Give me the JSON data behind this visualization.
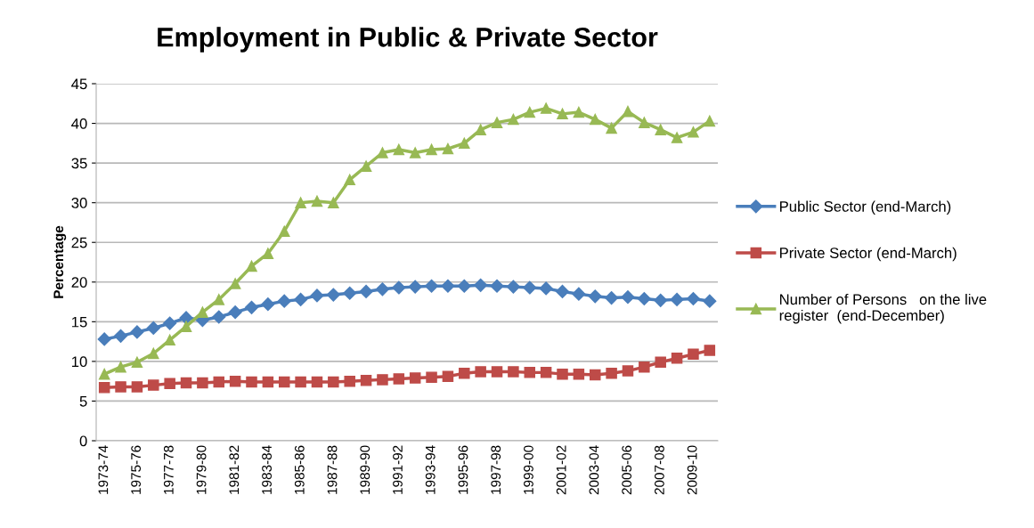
{
  "chart_data": {
    "type": "line",
    "title": "Employment in Public & Private Sector",
    "ylabel": "Percentage",
    "categories": [
      "1973-74",
      null,
      "1975-76",
      null,
      "1977-78",
      null,
      "1979-80",
      null,
      "1981-82",
      null,
      "1983-84",
      null,
      "1985-86",
      null,
      "1987-88",
      null,
      "1989-90",
      null,
      "1991-92",
      null,
      "1993-94",
      null,
      "1995-96",
      null,
      "1997-98",
      null,
      "1999-00",
      null,
      "2001-02",
      null,
      "2003-04",
      null,
      "2005-06",
      null,
      "2007-08",
      null,
      "2009-10",
      null
    ],
    "series": [
      {
        "name": "Public Sector (end-March)",
        "color": "#4a7ebb",
        "marker": "diamond",
        "values": [
          12.8,
          13.2,
          13.7,
          14.2,
          14.8,
          15.5,
          15.2,
          15.6,
          16.2,
          16.8,
          17.2,
          17.6,
          17.8,
          18.3,
          18.4,
          18.6,
          18.8,
          19.1,
          19.3,
          19.4,
          19.5,
          19.5,
          19.5,
          19.6,
          19.5,
          19.4,
          19.3,
          19.2,
          18.8,
          18.5,
          18.2,
          18.0,
          18.1,
          17.9,
          17.7,
          17.8,
          17.9,
          17.6
        ]
      },
      {
        "name": "Private Sector (end-March)",
        "color": "#be4b48",
        "marker": "square",
        "values": [
          6.7,
          6.8,
          6.8,
          7.0,
          7.2,
          7.3,
          7.3,
          7.4,
          7.5,
          7.4,
          7.4,
          7.4,
          7.4,
          7.4,
          7.4,
          7.5,
          7.6,
          7.7,
          7.8,
          7.9,
          8.0,
          8.1,
          8.5,
          8.7,
          8.7,
          8.7,
          8.6,
          8.6,
          8.4,
          8.4,
          8.3,
          8.5,
          8.8,
          9.3,
          9.9,
          10.4,
          10.9,
          11.4
        ]
      },
      {
        "name": "Number of Persons   on the live\nregister  (end-December)",
        "color": "#98b954",
        "marker": "triangle",
        "values": [
          8.4,
          9.3,
          9.9,
          11.0,
          12.7,
          14.4,
          16.2,
          17.8,
          19.8,
          22.0,
          23.6,
          26.4,
          30.0,
          30.2,
          30.0,
          32.9,
          34.6,
          36.3,
          36.7,
          36.3,
          36.7,
          36.8,
          37.5,
          39.2,
          40.1,
          40.5,
          41.4,
          41.9,
          41.2,
          41.4,
          40.5,
          39.4,
          41.5,
          40.1,
          39.2,
          38.2,
          38.9,
          40.3
        ]
      }
    ],
    "ylim": [
      0,
      45
    ],
    "yticks": [
      0,
      5,
      10,
      15,
      20,
      25,
      30,
      35,
      40,
      45
    ],
    "grid": "y",
    "legend": "right",
    "line_style": "solid"
  }
}
